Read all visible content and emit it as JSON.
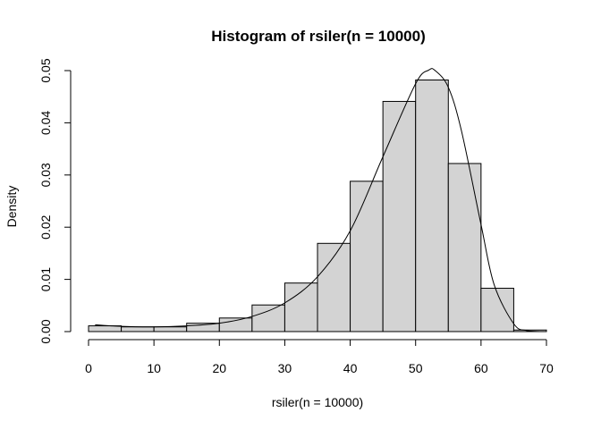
{
  "chart_data": {
    "type": "bar",
    "title": "Histogram of rsiler(n = 10000)",
    "xlabel": "rsiler(n = 10000)",
    "ylabel": "Density",
    "xlim": [
      0,
      70
    ],
    "ylim": [
      0,
      0.05
    ],
    "x_ticks": [
      0,
      10,
      20,
      30,
      40,
      50,
      60,
      70
    ],
    "x_tick_labels": [
      "0",
      "10",
      "20",
      "30",
      "40",
      "50",
      "60",
      "70"
    ],
    "y_ticks": [
      0,
      0.01,
      0.02,
      0.03,
      0.04,
      0.05
    ],
    "y_tick_labels": [
      "0.00",
      "0.01",
      "0.02",
      "0.03",
      "0.04",
      "0.05"
    ],
    "bar_fill": "#d3d3d3",
    "grid": false,
    "bins": [
      {
        "from": 0,
        "to": 5,
        "density": 0.0011
      },
      {
        "from": 5,
        "to": 10,
        "density": 0.0009
      },
      {
        "from": 10,
        "to": 15,
        "density": 0.0009
      },
      {
        "from": 15,
        "to": 20,
        "density": 0.0016
      },
      {
        "from": 20,
        "to": 25,
        "density": 0.0026
      },
      {
        "from": 25,
        "to": 30,
        "density": 0.0051
      },
      {
        "from": 30,
        "to": 35,
        "density": 0.0093
      },
      {
        "from": 35,
        "to": 40,
        "density": 0.0169
      },
      {
        "from": 40,
        "to": 45,
        "density": 0.0288
      },
      {
        "from": 45,
        "to": 50,
        "density": 0.0441
      },
      {
        "from": 50,
        "to": 55,
        "density": 0.0482
      },
      {
        "from": 55,
        "to": 60,
        "density": 0.0322
      },
      {
        "from": 60,
        "to": 65,
        "density": 0.0083
      },
      {
        "from": 65,
        "to": 70,
        "density": 0.0003
      }
    ],
    "density_curve": {
      "x": [
        1,
        5,
        10,
        15,
        20,
        25,
        30,
        35,
        40,
        45,
        50,
        52,
        53,
        55,
        57,
        60,
        62,
        65,
        67,
        70
      ],
      "y": [
        0.0013,
        0.001,
        0.0009,
        0.0011,
        0.0016,
        0.0029,
        0.0055,
        0.0105,
        0.0193,
        0.0335,
        0.0475,
        0.0501,
        0.05,
        0.0468,
        0.0385,
        0.0205,
        0.009,
        0.0015,
        0.0002,
        0.0
      ]
    }
  }
}
